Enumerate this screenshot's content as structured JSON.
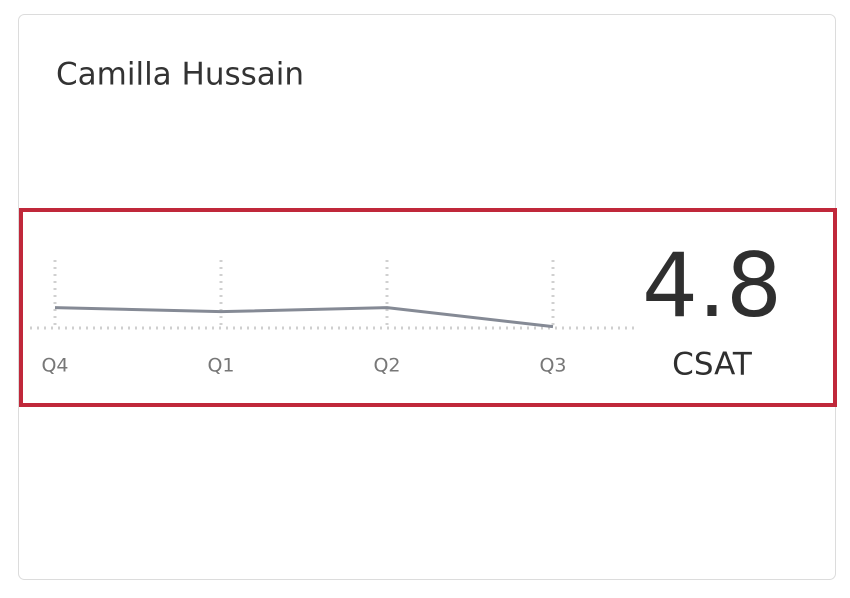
{
  "card": {
    "title": "Camilla Hussain",
    "metric": "4.8",
    "metric_label": "CSAT"
  },
  "chart_data": {
    "type": "line",
    "categories": [
      "Q4",
      "Q1",
      "Q2",
      "Q3"
    ],
    "series": [
      {
        "color": "#858a95",
        "values": [
          4.65,
          4.62,
          4.65,
          4.51
        ]
      }
    ],
    "ylim": [
      4.5,
      5.0
    ]
  }
}
